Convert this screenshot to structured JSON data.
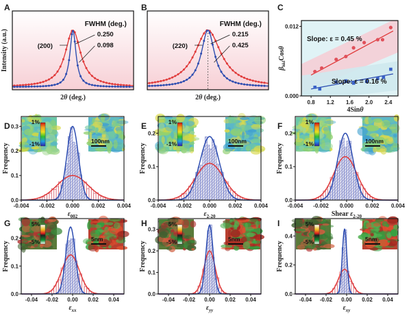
{
  "colors": {
    "red": "#e03a3a",
    "blue": "#2c4cb0",
    "bar_red": "#d45a6a",
    "bar_blue": "#5a70c8"
  },
  "chart_data": [
    {
      "panel": "A",
      "type": "line",
      "xlabel": "2θ (deg.)",
      "ylabel": "Intensity (a.u.)",
      "peak_label": "(200)",
      "header": "FWHM (deg.)",
      "series": [
        {
          "color": "red",
          "fwhm_label": "0.250",
          "fwhm": 0.25
        },
        {
          "color": "blue",
          "fwhm_label": "0.098",
          "fwhm": 0.098
        }
      ]
    },
    {
      "panel": "B",
      "type": "line",
      "xlabel": "2θ (deg.)",
      "ylabel": "",
      "peak_label": "(220)",
      "header": "FWHM (deg.)",
      "series": [
        {
          "color": "blue",
          "fwhm_label": "0.215",
          "fwhm": 0.215
        },
        {
          "color": "red",
          "fwhm_label": "0.425",
          "fwhm": 0.425
        }
      ]
    },
    {
      "panel": "C",
      "type": "scatter",
      "xlabel": "4Sinθ",
      "ylabel": "β_hkl Cosθ",
      "xlim": [
        0.6,
        2.6
      ],
      "ylim": [
        0,
        0.013
      ],
      "xticks": [
        "0.8",
        "1.2",
        "1.6",
        "2.0",
        "2.4"
      ],
      "yticks": [
        "0.000",
        "0.012"
      ],
      "series": [
        {
          "color": "red",
          "annotation": "Slope: ε = 0.45 %",
          "x": [
            0.88,
            1.02,
            1.32,
            1.52,
            1.68,
            1.9,
            2.18,
            2.28,
            2.45
          ],
          "y": [
            0.0042,
            0.0048,
            0.0063,
            0.0068,
            0.0083,
            0.0092,
            0.0097,
            0.0097,
            0.0118
          ],
          "fit": [
            [
              0.8,
              0.0036
            ],
            [
              2.5,
              0.0112
            ]
          ]
        },
        {
          "color": "blue",
          "annotation": "Slope: ε = 0.16 %",
          "x": [
            0.88,
            0.98,
            1.32,
            1.52,
            1.68,
            1.95,
            2.18,
            2.3,
            2.45
          ],
          "y": [
            0.0015,
            0.0012,
            0.0024,
            0.0026,
            0.0022,
            0.0025,
            0.003,
            0.0032,
            0.0046
          ],
          "fit": [
            [
              0.8,
              0.0012
            ],
            [
              2.5,
              0.0038
            ]
          ]
        }
      ]
    },
    {
      "panel": "D",
      "type": "bar",
      "subtype": "histogram",
      "xlabel": "ε002",
      "ylabel": "Frequency",
      "xlim": [
        -0.004,
        0.004
      ],
      "ylim": [
        0,
        0.34
      ],
      "xticks": [
        "-0.004",
        "-0.002",
        "0.000",
        "0.002",
        "0.004"
      ],
      "yticks": [
        "0.0",
        "0.1",
        "0.2",
        "0.3"
      ],
      "inset_left": {
        "top": "1%",
        "bottom": "-1%"
      },
      "inset_right": {
        "scale": "100nm"
      },
      "series": [
        {
          "color": "blue",
          "mu": 0.0,
          "sigma": 0.00045,
          "peak": 0.3
        },
        {
          "color": "red",
          "mu": 0.0,
          "sigma": 0.0012,
          "peak": 0.1
        }
      ]
    },
    {
      "panel": "E",
      "type": "bar",
      "subtype": "histogram",
      "xlabel": "ε2-20",
      "ylabel": "Frequency",
      "xlim": [
        -0.004,
        0.004
      ],
      "ylim": [
        0,
        0.25
      ],
      "xticks": [
        "-0.004",
        "-0.002",
        "0.000",
        "0.002",
        "0.004"
      ],
      "yticks": [
        "0.0",
        "0.1",
        "0.2"
      ],
      "inset_left": {
        "top": "1%",
        "bottom": "-1%"
      },
      "inset_right": {
        "scale": "100nm"
      },
      "series": [
        {
          "color": "blue",
          "mu": 0.0,
          "sigma": 0.00075,
          "peak": 0.19
        },
        {
          "color": "red",
          "mu": 0.0,
          "sigma": 0.0011,
          "peak": 0.11
        }
      ]
    },
    {
      "panel": "F",
      "type": "bar",
      "subtype": "histogram",
      "xlabel": "Shear ε2-20",
      "ylabel": "Frequency",
      "xlim": [
        -0.004,
        0.004
      ],
      "ylim": [
        0,
        0.25
      ],
      "xticks": [
        "-0.004",
        "-0.002",
        "0.000",
        "0.002",
        "0.004"
      ],
      "yticks": [
        "0.0",
        "0.1",
        "0.2"
      ],
      "inset_left": {
        "top": "1%",
        "bottom": "-1%"
      },
      "inset_right": {
        "scale": "100nm"
      },
      "series": [
        {
          "color": "blue",
          "mu": -0.0001,
          "sigma": 0.0006,
          "peak": 0.2
        },
        {
          "color": "red",
          "mu": -0.0001,
          "sigma": 0.0009,
          "peak": 0.13
        }
      ]
    },
    {
      "panel": "G",
      "type": "bar",
      "subtype": "histogram",
      "xlabel": "εxx",
      "ylabel": "Frequency",
      "xlim": [
        -0.05,
        0.05
      ],
      "ylim": [
        0,
        0.27
      ],
      "xticks": [
        "-0.04",
        "-0.02",
        "0.00",
        "0.02",
        "0.04"
      ],
      "yticks": [
        "0.0",
        "0.1",
        "0.2"
      ],
      "inset_left": {
        "top": "5%",
        "bottom": "-5%"
      },
      "inset_right": {
        "scale": "5nm"
      },
      "series": [
        {
          "color": "blue",
          "mu": -0.002,
          "sigma": 0.0045,
          "peak": 0.24
        },
        {
          "color": "red",
          "mu": -0.002,
          "sigma": 0.0085,
          "peak": 0.14
        }
      ]
    },
    {
      "panel": "H",
      "type": "bar",
      "subtype": "histogram",
      "xlabel": "εyy",
      "ylabel": "Frequency",
      "xlim": [
        -0.05,
        0.05
      ],
      "ylim": [
        0,
        0.35
      ],
      "xticks": [
        "-0.04",
        "-0.02",
        "0.00",
        "0.02",
        "0.04"
      ],
      "yticks": [
        "0.0",
        "0.1",
        "0.2",
        "0.3"
      ],
      "inset_left": {
        "top": "5%",
        "bottom": "-5%"
      },
      "inset_right": {
        "scale": "5nm"
      },
      "series": [
        {
          "color": "blue",
          "mu": 0.0,
          "sigma": 0.0035,
          "peak": 0.32
        },
        {
          "color": "red",
          "mu": 0.0,
          "sigma": 0.0055,
          "peak": 0.2
        }
      ]
    },
    {
      "panel": "I",
      "type": "bar",
      "subtype": "histogram",
      "xlabel": "εxy",
      "ylabel": "Frequency",
      "xlim": [
        -0.05,
        0.05
      ],
      "ylim": [
        0,
        0.52
      ],
      "xticks": [
        "-0.04",
        "-0.02",
        "0.00",
        "0.02",
        "0.04"
      ],
      "yticks": [
        "0.0",
        "0.2",
        "0.4"
      ],
      "inset_left": {
        "top": "5%",
        "bottom": "-5%"
      },
      "inset_right": {
        "scale": "5nm"
      },
      "series": [
        {
          "color": "blue",
          "mu": -0.002,
          "sigma": 0.0022,
          "peak": 0.45
        },
        {
          "color": "red",
          "mu": -0.002,
          "sigma": 0.006,
          "peak": 0.17
        }
      ]
    }
  ]
}
